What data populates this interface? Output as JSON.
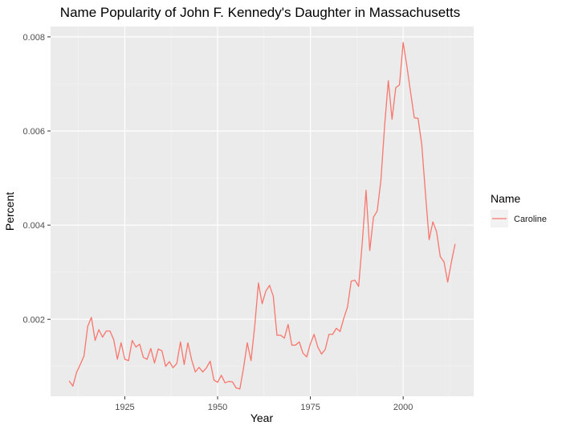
{
  "chart_data": {
    "type": "line",
    "title": "Name Popularity of John F. Kennedy's Daughter in Massachusetts",
    "xlabel": "Year",
    "ylabel": "Percent",
    "xlim": [
      1905,
      2019
    ],
    "ylim": [
      0.000365,
      0.00822
    ],
    "x_ticks": [
      1925,
      1950,
      1975,
      2000
    ],
    "x_tick_labels": [
      "1925",
      "1950",
      "1975",
      "2000"
    ],
    "y_ticks": [
      0.002,
      0.004,
      0.006,
      0.008
    ],
    "y_tick_labels": [
      "0.002",
      "0.004",
      "0.006",
      "0.008"
    ],
    "grid": true,
    "legend": {
      "title": "Name",
      "position": "right"
    },
    "series": [
      {
        "name": "Caroline",
        "color": "#f8766d",
        "x": [
          1910,
          1911,
          1912,
          1913,
          1914,
          1915,
          1916,
          1917,
          1918,
          1919,
          1920,
          1921,
          1922,
          1923,
          1924,
          1925,
          1926,
          1927,
          1928,
          1929,
          1930,
          1931,
          1932,
          1933,
          1934,
          1935,
          1936,
          1937,
          1938,
          1939,
          1940,
          1941,
          1942,
          1943,
          1944,
          1945,
          1946,
          1947,
          1948,
          1949,
          1950,
          1951,
          1952,
          1953,
          1954,
          1955,
          1956,
          1957,
          1958,
          1959,
          1960,
          1961,
          1962,
          1963,
          1964,
          1965,
          1966,
          1967,
          1968,
          1969,
          1970,
          1971,
          1972,
          1973,
          1974,
          1975,
          1976,
          1977,
          1978,
          1979,
          1980,
          1981,
          1982,
          1983,
          1984,
          1985,
          1986,
          1987,
          1988,
          1989,
          1990,
          1991,
          1992,
          1993,
          1994,
          1995,
          1996,
          1997,
          1998,
          1999,
          2000,
          2001,
          2002,
          2003,
          2004,
          2005,
          2006,
          2007,
          2008,
          2009,
          2010,
          2011,
          2012,
          2013,
          2014
        ],
        "values": [
          0.00069,
          0.00058,
          0.00087,
          0.00104,
          0.00122,
          0.00185,
          0.00204,
          0.00155,
          0.00178,
          0.00162,
          0.00175,
          0.00175,
          0.00157,
          0.00115,
          0.0015,
          0.00115,
          0.00112,
          0.00155,
          0.00141,
          0.00147,
          0.00119,
          0.00115,
          0.00138,
          0.00107,
          0.00137,
          0.00133,
          0.001,
          0.0011,
          0.00097,
          0.00106,
          0.00152,
          0.00104,
          0.0015,
          0.00114,
          0.00088,
          0.00098,
          0.00088,
          0.00097,
          0.00111,
          0.00071,
          0.00066,
          0.00081,
          0.00065,
          0.00068,
          0.00067,
          0.00054,
          0.00052,
          0.00097,
          0.0015,
          0.00112,
          0.00185,
          0.00277,
          0.00233,
          0.0026,
          0.00272,
          0.00249,
          0.00166,
          0.00166,
          0.0016,
          0.00189,
          0.00145,
          0.00145,
          0.00152,
          0.00128,
          0.0012,
          0.00148,
          0.00168,
          0.00141,
          0.00126,
          0.00136,
          0.00168,
          0.00168,
          0.00181,
          0.00174,
          0.00202,
          0.00226,
          0.00281,
          0.00283,
          0.0027,
          0.00365,
          0.00474,
          0.00346,
          0.00417,
          0.0043,
          0.00495,
          0.00611,
          0.00707,
          0.00625,
          0.00692,
          0.00698,
          0.00788,
          0.00738,
          0.00682,
          0.00628,
          0.00627,
          0.00572,
          0.00468,
          0.00369,
          0.00407,
          0.00386,
          0.00333,
          0.00322,
          0.00279,
          0.00322,
          0.0036
        ]
      }
    ]
  }
}
